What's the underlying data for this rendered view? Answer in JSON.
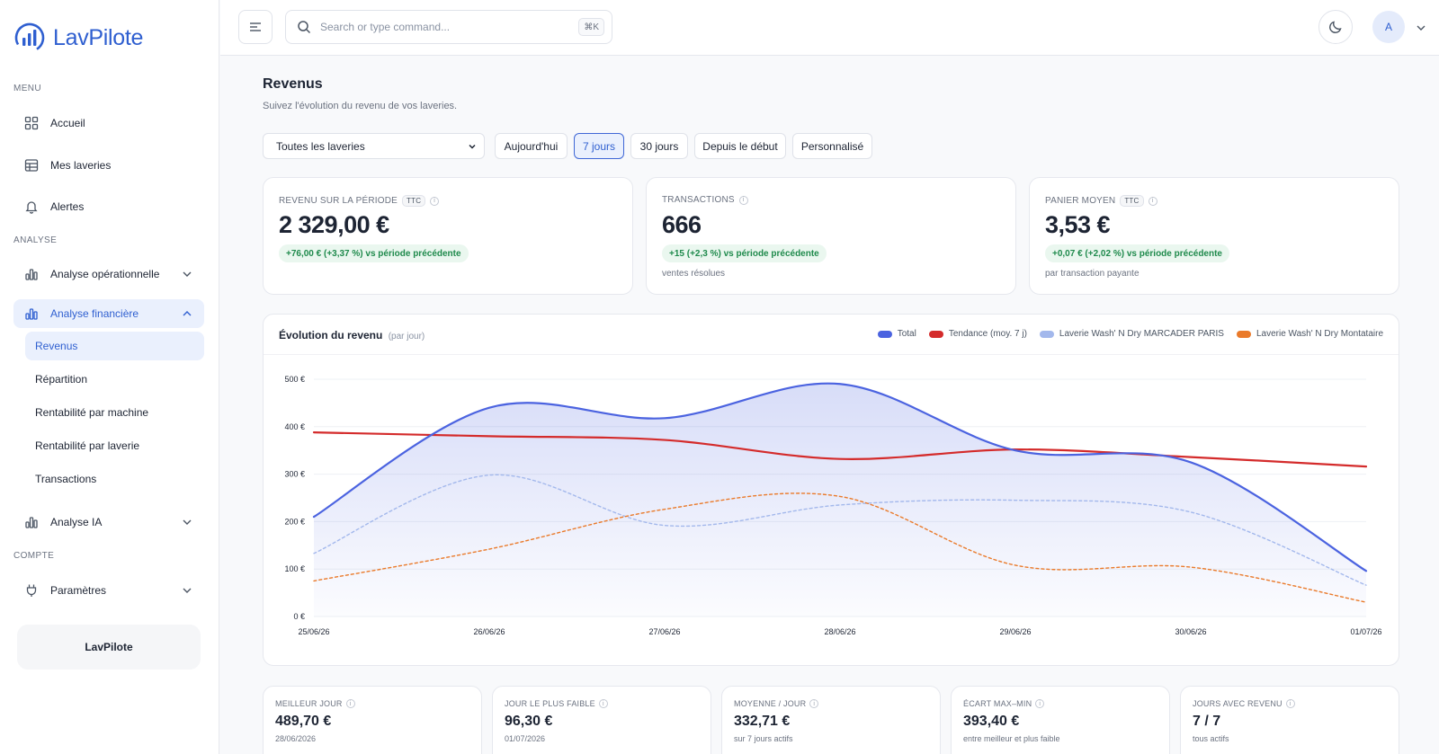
{
  "brand": {
    "name": "LavPilote",
    "footer_label": "LavPilote"
  },
  "sidebar": {
    "sections": {
      "menu": "MENU",
      "analyse": "ANALYSE",
      "compte": "COMPTE"
    },
    "items": [
      {
        "label": "Accueil",
        "icon": "grid-icon"
      },
      {
        "label": "Mes laveries",
        "icon": "table-icon"
      },
      {
        "label": "Alertes",
        "icon": "bell-icon"
      },
      {
        "label": "Analyse opérationnelle",
        "icon": "bar-chart-icon"
      },
      {
        "label": "Analyse financière",
        "icon": "bar-chart-icon"
      },
      {
        "label": "Analyse IA",
        "icon": "bar-chart-icon"
      },
      {
        "label": "Paramètres",
        "icon": "plug-icon"
      }
    ],
    "sub_items": [
      {
        "label": "Revenus"
      },
      {
        "label": "Répartition"
      },
      {
        "label": "Rentabilité par machine"
      },
      {
        "label": "Rentabilité par laverie"
      },
      {
        "label": "Transactions"
      }
    ]
  },
  "topbar": {
    "search_placeholder": "Search or type command...",
    "shortcut": "⌘K",
    "avatar_initial": "A"
  },
  "page": {
    "title": "Revenus",
    "subtitle": "Suivez l'évolution du revenu de vos laveries."
  },
  "filters": {
    "laverie_select": "Toutes les laveries",
    "periods": [
      "Aujourd'hui",
      "7 jours",
      "30 jours",
      "Depuis le début",
      "Personnalisé"
    ],
    "active_period": "7 jours"
  },
  "kpis": [
    {
      "label": "REVENU SUR LA PÉRIODE",
      "badge": "TTC",
      "value": "2 329,00 €",
      "delta": "+76,00 € (+3,37 %) vs période précédente",
      "note": ""
    },
    {
      "label": "TRANSACTIONS",
      "badge": "",
      "value": "666",
      "delta": "+15 (+2,3 %) vs période précédente",
      "note": "ventes résolues"
    },
    {
      "label": "PANIER MOYEN",
      "badge": "TTC",
      "value": "3,53 €",
      "delta": "+0,07 € (+2,02 %) vs période précédente",
      "note": "par transaction payante"
    }
  ],
  "chart_card": {
    "title": "Évolution du revenu",
    "title_suffix": "(par jour)"
  },
  "chart_data": {
    "type": "line",
    "x": [
      "25/06/26",
      "26/06/26",
      "27/06/26",
      "28/06/26",
      "29/06/26",
      "30/06/26",
      "01/07/26"
    ],
    "ylim": [
      0,
      500
    ],
    "y_ticks": [
      "0 €",
      "100 €",
      "200 €",
      "300 €",
      "400 €",
      "500 €"
    ],
    "series": [
      {
        "name": "Total",
        "values": [
          210,
          440,
          418,
          490,
          350,
          325,
          96
        ],
        "color": "#4b63e0",
        "style": "solid-area"
      },
      {
        "name": "Tendance (moy. 7 j)",
        "values": [
          388,
          380,
          372,
          332,
          352,
          336,
          316
        ],
        "color": "#d42b2b",
        "style": "solid"
      },
      {
        "name": "Laverie Wash' N Dry MARCADER PARIS",
        "values": [
          133,
          298,
          192,
          235,
          245,
          220,
          66
        ],
        "color": "#a3b8ec",
        "style": "dashed"
      },
      {
        "name": "Laverie Wash' N Dry Montataire",
        "values": [
          75,
          142,
          226,
          253,
          108,
          104,
          30
        ],
        "color": "#ea7a2a",
        "style": "dashed"
      }
    ],
    "grid": true,
    "legend_position": "top-right"
  },
  "stats": [
    {
      "label": "MEILLEUR JOUR",
      "value": "489,70 €",
      "note": "28/06/2026"
    },
    {
      "label": "JOUR LE PLUS FAIBLE",
      "value": "96,30 €",
      "note": "01/07/2026"
    },
    {
      "label": "MOYENNE / JOUR",
      "value": "332,71 €",
      "note": "sur 7 jours actifs"
    },
    {
      "label": "ÉCART MAX–MIN",
      "value": "393,40 €",
      "note": "entre meilleur et plus faible"
    },
    {
      "label": "JOURS AVEC REVENU",
      "value": "7 / 7",
      "note": "tous actifs"
    }
  ]
}
